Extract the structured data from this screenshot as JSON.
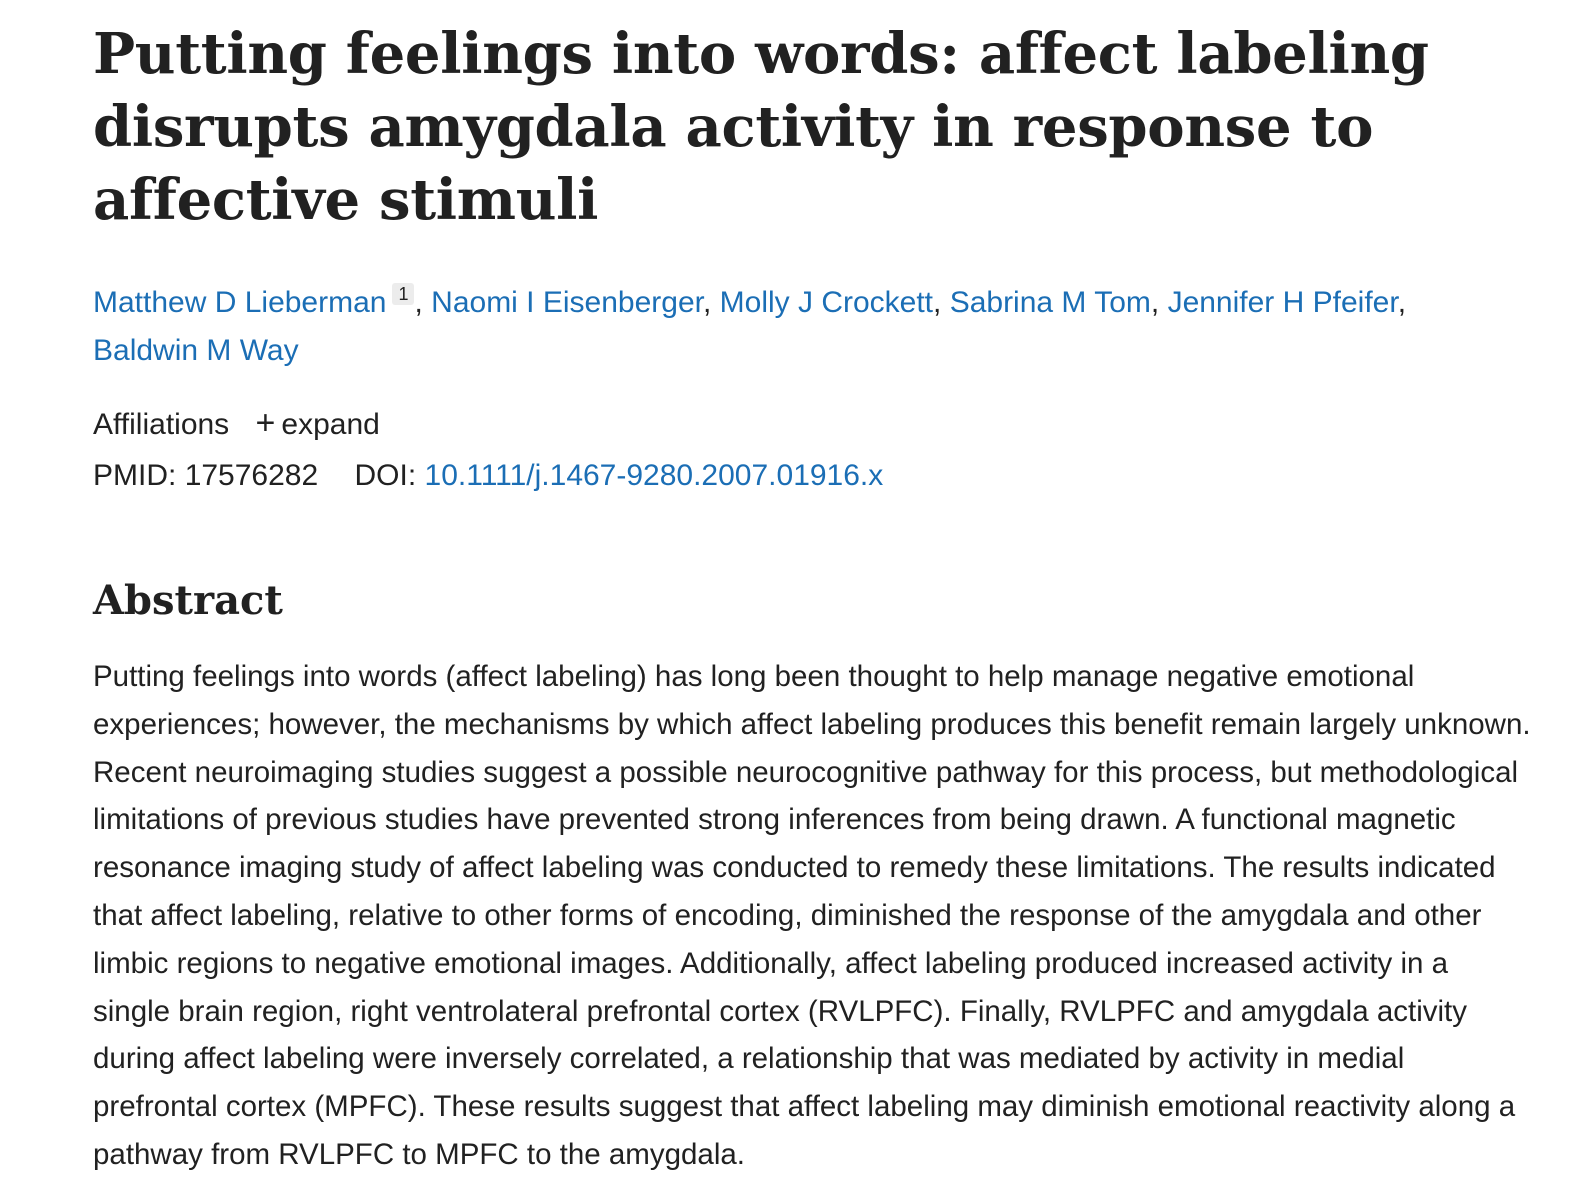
{
  "article": {
    "title": "Putting feelings into words: affect labeling disrupts amygdala activity in response to affective stimuli",
    "authors": [
      {
        "name": "Matthew D Lieberman",
        "sup": "1"
      },
      {
        "name": "Naomi I Eisenberger"
      },
      {
        "name": "Molly J Crockett"
      },
      {
        "name": "Sabrina M Tom"
      },
      {
        "name": "Jennifer H Pfeifer"
      },
      {
        "name": "Baldwin M Way"
      }
    ],
    "affiliations_label": "Affiliations",
    "expand_label": "expand",
    "pmid_label": "PMID:",
    "pmid": "17576282",
    "doi_label": "DOI:",
    "doi": "10.1111/j.1467-9280.2007.01916.x"
  },
  "abstract": {
    "heading": "Abstract",
    "text": "Putting feelings into words (affect labeling) has long been thought to help manage negative emotional experiences; however, the mechanisms by which affect labeling produces this benefit remain largely unknown. Recent neuroimaging studies suggest a possible neurocognitive pathway for this process, but methodological limitations of previous studies have prevented strong inferences from being drawn. A functional magnetic resonance imaging study of affect labeling was conducted to remedy these limitations. The results indicated that affect labeling, relative to other forms of encoding, diminished the response of the amygdala and other limbic regions to negative emotional images. Additionally, affect labeling produced increased activity in a single brain region, right ventrolateral prefrontal cortex (RVLPFC). Finally, RVLPFC and amygdala activity during affect labeling were inversely correlated, a relationship that was mediated by activity in medial prefrontal cortex (MPFC). These results suggest that affect labeling may diminish emotional reactivity along a pathway from RVLPFC to MPFC to the amygdala."
  },
  "colors": {
    "text": "#212121",
    "link": "#1b6eb5"
  }
}
